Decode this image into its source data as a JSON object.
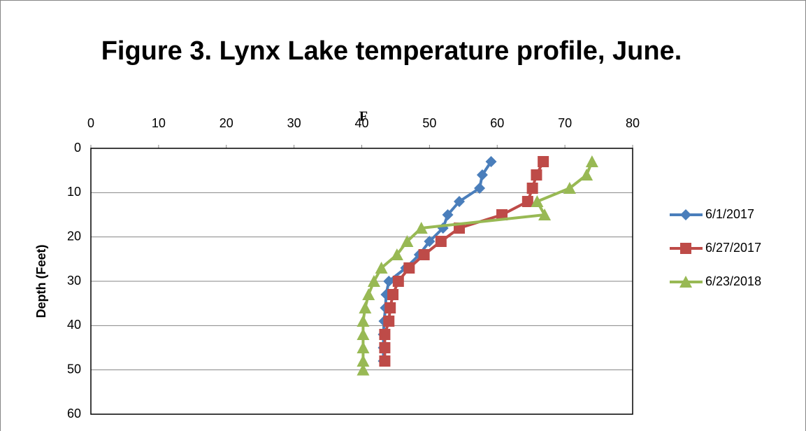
{
  "chart_data": {
    "type": "line",
    "title": "Figure 3. Lynx Lake temperature profile, June.",
    "x_label": "F",
    "y_label": "Depth (Feet)",
    "xlim": [
      0,
      80
    ],
    "xticks": [
      0,
      10,
      20,
      30,
      40,
      50,
      60,
      70,
      80
    ],
    "ylim": [
      0,
      60
    ],
    "yticks": [
      0,
      10,
      20,
      30,
      40,
      50,
      60
    ],
    "y_inverted": true,
    "x_axis_position": "top",
    "grid": true,
    "legend": "right",
    "series": [
      {
        "name": "6/1/2017",
        "color": "#4a7ebb",
        "marker": "diamond",
        "x": [
          59.1,
          57.8,
          57.4,
          54.4,
          52.7,
          52,
          50,
          48.5,
          46.5,
          44,
          43.6,
          43.5,
          43.3,
          43.2,
          43.2,
          43.2
        ],
        "y": [
          3,
          6,
          9,
          12,
          15,
          18,
          21,
          24,
          27,
          30,
          33,
          36,
          39,
          42,
          45,
          48
        ]
      },
      {
        "name": "6/27/2017",
        "color": "#be4b48",
        "marker": "square",
        "x": [
          66.8,
          65.8,
          65.2,
          64.5,
          60.7,
          54.4,
          51.7,
          49.2,
          47,
          45.4,
          44.6,
          44.2,
          44,
          43.4,
          43.4,
          43.4
        ],
        "y": [
          3,
          6,
          9,
          12,
          15,
          18,
          21,
          24,
          27,
          30,
          33,
          36,
          39,
          42,
          45,
          48
        ]
      },
      {
        "name": "6/23/2018",
        "color": "#98b954",
        "marker": "triangle",
        "x": [
          74,
          73.2,
          70.7,
          65.9,
          67,
          48.8,
          46.7,
          45.2,
          42.9,
          41.8,
          41,
          40.5,
          40.2,
          40.2,
          40.2,
          40.2,
          40.2
        ],
        "y": [
          3,
          6,
          9,
          12,
          15,
          18,
          21,
          24,
          27,
          30,
          33,
          36,
          39,
          42,
          45,
          48,
          50
        ]
      }
    ]
  }
}
